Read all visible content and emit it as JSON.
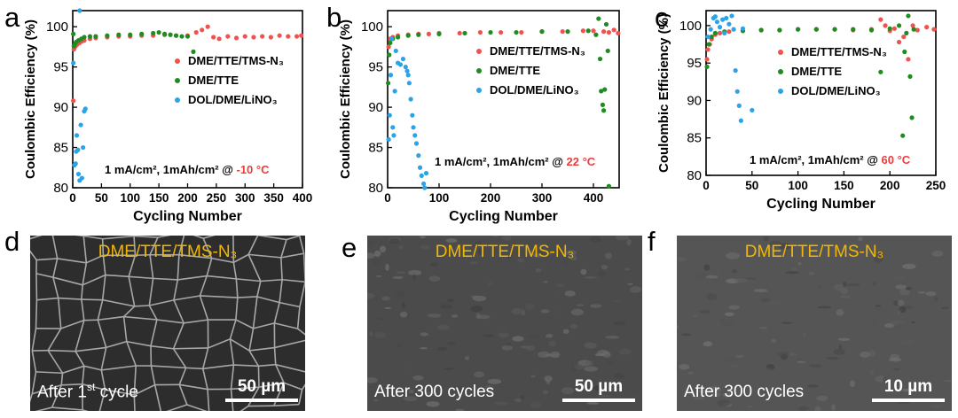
{
  "colors": {
    "red": "#f0524f",
    "green": "#1e8c1e",
    "blue": "#2aa3e8",
    "temp_red": "#ee3b3b",
    "sem_label": "#f2b705"
  },
  "panels": {
    "a": {
      "letter": "a",
      "condition": "1 mA/cm², 1mAh/cm² @ ",
      "temp": "-10 °C"
    },
    "b": {
      "letter": "b",
      "condition": "1 mA/cm², 1mAh/cm² @ ",
      "temp": "22 °C"
    },
    "c": {
      "letter": "c",
      "condition": "1 mA/cm², 1mAh/cm² @ ",
      "temp": "60 °C"
    },
    "d": {
      "letter": "d",
      "label": "DME/TTE/TMS-N₃",
      "caption_pre": "After 1",
      "caption_sup": "st",
      "caption_post": " cycle",
      "scale": "50 µm"
    },
    "e": {
      "letter": "e",
      "label": "DME/TTE/TMS-N₃",
      "caption": "After 300 cycles",
      "scale": "50 µm"
    },
    "f": {
      "letter": "f",
      "label": "DME/TTE/TMS-N₃",
      "caption": "After 300 cycles",
      "scale": "10 µm"
    }
  },
  "chart_data": [
    {
      "panel": "a",
      "type": "scatter",
      "xlabel": "Cycling Number",
      "ylabel": "Coulombic Efficiency (%)",
      "xlim": [
        0,
        400
      ],
      "ylim": [
        80,
        102
      ],
      "xticks": [
        0,
        50,
        100,
        150,
        200,
        250,
        300,
        350,
        400
      ],
      "yticks": [
        80,
        85,
        90,
        95,
        100
      ],
      "annotation": "1 mA/cm², 1mAh/cm² @ -10 °C",
      "series": [
        {
          "name": "DME/TTE/TMS-N₃",
          "color": "#f0524f",
          "points": [
            [
              1,
              90.8
            ],
            [
              2,
              97.2
            ],
            [
              3,
              97.4
            ],
            [
              5,
              97.6
            ],
            [
              8,
              97.8
            ],
            [
              12,
              98.0
            ],
            [
              16,
              98.2
            ],
            [
              20,
              98.3
            ],
            [
              30,
              98.5
            ],
            [
              40,
              98.6
            ],
            [
              60,
              98.7
            ],
            [
              80,
              98.8
            ],
            [
              100,
              98.8
            ],
            [
              120,
              98.9
            ],
            [
              140,
              98.9
            ],
            [
              160,
              99.0
            ],
            [
              180,
              98.9
            ],
            [
              200,
              98.9
            ],
            [
              215,
              99.3
            ],
            [
              225,
              99.6
            ],
            [
              235,
              100.0
            ],
            [
              245,
              98.7
            ],
            [
              255,
              98.5
            ],
            [
              270,
              98.8
            ],
            [
              285,
              98.6
            ],
            [
              300,
              98.8
            ],
            [
              315,
              98.7
            ],
            [
              330,
              98.8
            ],
            [
              345,
              98.7
            ],
            [
              360,
              98.9
            ],
            [
              375,
              98.8
            ],
            [
              390,
              98.8
            ],
            [
              398,
              98.9
            ]
          ]
        },
        {
          "name": "DME/TTE",
          "color": "#1e8c1e",
          "points": [
            [
              1,
              99.1
            ],
            [
              2,
              97.6
            ],
            [
              4,
              97.9
            ],
            [
              6,
              98.1
            ],
            [
              10,
              98.3
            ],
            [
              15,
              98.5
            ],
            [
              20,
              98.7
            ],
            [
              30,
              98.8
            ],
            [
              40,
              98.8
            ],
            [
              60,
              98.9
            ],
            [
              80,
              99.0
            ],
            [
              100,
              99.0
            ],
            [
              120,
              99.1
            ],
            [
              140,
              99.2
            ],
            [
              150,
              99.3
            ],
            [
              160,
              99.1
            ],
            [
              170,
              99.0
            ],
            [
              180,
              98.9
            ],
            [
              190,
              98.8
            ],
            [
              200,
              98.8
            ],
            [
              210,
              96.9
            ]
          ]
        },
        {
          "name": "DOL/DME/LiNO₃",
          "color": "#2aa3e8",
          "points": [
            [
              1,
              95.5
            ],
            [
              3,
              82.8
            ],
            [
              5,
              83.0
            ],
            [
              6,
              84.5
            ],
            [
              7,
              86.5
            ],
            [
              9,
              84.7
            ],
            [
              10,
              81.7
            ],
            [
              12,
              80.9
            ],
            [
              14,
              87.8
            ],
            [
              16,
              81.2
            ],
            [
              18,
              85.0
            ],
            [
              20,
              89.5
            ],
            [
              22,
              89.8
            ],
            [
              12,
              102.0
            ]
          ]
        }
      ],
      "legend": "middle-right"
    },
    {
      "panel": "b",
      "type": "scatter",
      "xlabel": "Cycling Number",
      "ylabel": "Coulombic Efficiency (%)",
      "xlim": [
        0,
        450
      ],
      "ylim": [
        80,
        102
      ],
      "xticks": [
        0,
        100,
        200,
        300,
        400
      ],
      "yticks": [
        80,
        85,
        90,
        95,
        100
      ],
      "annotation": "1 mA/cm², 1mAh/cm² @ 22 °C",
      "series": [
        {
          "name": "DME/TTE/TMS-N₃",
          "color": "#f0524f",
          "points": [
            [
              2,
              97.5
            ],
            [
              5,
              98.5
            ],
            [
              10,
              98.7
            ],
            [
              20,
              98.9
            ],
            [
              40,
              99.0
            ],
            [
              60,
              99.1
            ],
            [
              80,
              99.1
            ],
            [
              100,
              99.2
            ],
            [
              140,
              99.2
            ],
            [
              180,
              99.3
            ],
            [
              220,
              99.3
            ],
            [
              260,
              99.3
            ],
            [
              300,
              99.4
            ],
            [
              340,
              99.4
            ],
            [
              380,
              99.5
            ],
            [
              400,
              99.5
            ],
            [
              420,
              99.4
            ],
            [
              430,
              99.3
            ],
            [
              440,
              99.6
            ],
            [
              448,
              99.2
            ]
          ]
        },
        {
          "name": "DME/TTE",
          "color": "#1e8c1e",
          "points": [
            [
              1,
              93.0
            ],
            [
              3,
              96.5
            ],
            [
              5,
              98.0
            ],
            [
              10,
              98.5
            ],
            [
              20,
              98.7
            ],
            [
              40,
              98.9
            ],
            [
              60,
              99.0
            ],
            [
              100,
              99.1
            ],
            [
              150,
              99.2
            ],
            [
              200,
              99.3
            ],
            [
              250,
              99.3
            ],
            [
              300,
              99.4
            ],
            [
              350,
              99.4
            ],
            [
              390,
              99.5
            ],
            [
              405,
              99.0
            ],
            [
              410,
              101.0
            ],
            [
              413,
              96.0
            ],
            [
              415,
              92.0
            ],
            [
              418,
              90.3
            ],
            [
              420,
              89.6
            ],
            [
              422,
              92.2
            ],
            [
              425,
              100.3
            ],
            [
              428,
              97.0
            ],
            [
              430,
              80.2
            ]
          ]
        },
        {
          "name": "DOL/DME/LiNO₃",
          "color": "#2aa3e8",
          "points": [
            [
              2,
              86.0
            ],
            [
              4,
              89.0
            ],
            [
              6,
              94.0
            ],
            [
              8,
              98.5
            ],
            [
              10,
              87.5
            ],
            [
              12,
              86.5
            ],
            [
              14,
              92.0
            ],
            [
              16,
              97.0
            ],
            [
              20,
              95.5
            ],
            [
              25,
              95.3
            ],
            [
              30,
              96.0
            ],
            [
              35,
              95.0
            ],
            [
              38,
              94.5
            ],
            [
              40,
              94.0
            ],
            [
              42,
              93.0
            ],
            [
              45,
              91.0
            ],
            [
              48,
              89.0
            ],
            [
              50,
              87.5
            ],
            [
              53,
              86.5
            ],
            [
              56,
              85.5
            ],
            [
              60,
              84.0
            ],
            [
              63,
              82.5
            ],
            [
              66,
              81.5
            ],
            [
              70,
              80.5
            ],
            [
              72,
              80.0
            ],
            [
              75,
              81.8
            ]
          ]
        }
      ],
      "legend": "middle-right"
    },
    {
      "panel": "c",
      "type": "scatter",
      "xlabel": "Cycling Number",
      "ylabel": "Coulombic Efficiency (%)",
      "xlim": [
        0,
        250
      ],
      "ylim": [
        80,
        102
      ],
      "xticks": [
        0,
        50,
        100,
        150,
        200,
        250
      ],
      "yticks": [
        80,
        85,
        90,
        95,
        100
      ],
      "annotation": "1 mA/cm², 1mAh/cm² @ 60 °C",
      "series": [
        {
          "name": "DME/TTE/TMS-N₃",
          "color": "#f0524f",
          "points": [
            [
              1,
              95.5
            ],
            [
              2,
              96.8
            ],
            [
              4,
              97.5
            ],
            [
              6,
              98.2
            ],
            [
              10,
              98.8
            ],
            [
              15,
              99.0
            ],
            [
              25,
              99.2
            ],
            [
              40,
              99.3
            ],
            [
              60,
              99.4
            ],
            [
              80,
              99.4
            ],
            [
              100,
              99.5
            ],
            [
              120,
              99.5
            ],
            [
              140,
              99.5
            ],
            [
              160,
              99.4
            ],
            [
              180,
              99.5
            ],
            [
              190,
              100.8
            ],
            [
              195,
              100.0
            ],
            [
              200,
              99.3
            ],
            [
              205,
              99.6
            ],
            [
              210,
              97.8
            ],
            [
              215,
              98.5
            ],
            [
              220,
              95.5
            ],
            [
              225,
              100.0
            ],
            [
              230,
              99.4
            ],
            [
              240,
              99.8
            ],
            [
              248,
              99.5
            ]
          ]
        },
        {
          "name": "DME/TTE",
          "color": "#1e8c1e",
          "points": [
            [
              1,
              94.5
            ],
            [
              3,
              97.5
            ],
            [
              6,
              98.5
            ],
            [
              10,
              99.0
            ],
            [
              20,
              99.2
            ],
            [
              40,
              99.3
            ],
            [
              60,
              99.4
            ],
            [
              80,
              99.4
            ],
            [
              100,
              99.5
            ],
            [
              120,
              99.5
            ],
            [
              140,
              99.5
            ],
            [
              160,
              99.5
            ],
            [
              180,
              99.4
            ],
            [
              190,
              93.8
            ],
            [
              200,
              99.6
            ],
            [
              210,
              100.0
            ],
            [
              214,
              85.3
            ],
            [
              216,
              96.5
            ],
            [
              218,
              99.0
            ],
            [
              220,
              101.3
            ],
            [
              222,
              93.2
            ],
            [
              224,
              87.7
            ],
            [
              226,
              99.5
            ]
          ]
        },
        {
          "name": "DOL/DME/LiNO₃",
          "color": "#2aa3e8",
          "points": [
            [
              2,
              98.5
            ],
            [
              5,
              99.5
            ],
            [
              8,
              101.0
            ],
            [
              10,
              101.2
            ],
            [
              12,
              100.5
            ],
            [
              15,
              99.8
            ],
            [
              18,
              100.8
            ],
            [
              20,
              99.0
            ],
            [
              22,
              101.0
            ],
            [
              25,
              100.2
            ],
            [
              28,
              101.3
            ],
            [
              30,
              99.5
            ],
            [
              32,
              94.0
            ],
            [
              34,
              91.2
            ],
            [
              36,
              89.3
            ],
            [
              38,
              87.3
            ],
            [
              40,
              99.6
            ],
            [
              50,
              88.7
            ]
          ]
        }
      ],
      "legend": "middle-right"
    }
  ]
}
